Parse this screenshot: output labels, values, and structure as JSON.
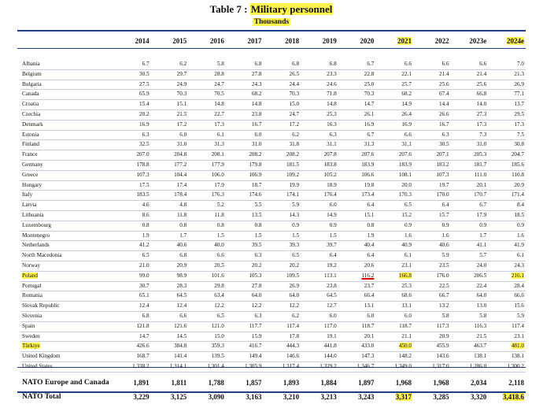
{
  "title_prefix": "Table 7 : ",
  "title_highlight": "Military personnel",
  "units": "Thousands",
  "years": [
    "2014",
    "2015",
    "2016",
    "2017",
    "2018",
    "2019",
    "2020",
    "2021",
    "2022",
    "2023e",
    "2024e"
  ],
  "highlight_color": "#fff34d",
  "rule_color": "#1f3f8a",
  "rows": [
    {
      "name": "Albania",
      "v": [
        "6.7",
        "6.2",
        "5.8",
        "6.8",
        "6.8",
        "6.8",
        "6.7",
        "6.6",
        "6.6",
        "6.6",
        "7.0"
      ]
    },
    {
      "name": "Belgium",
      "v": [
        "30.5",
        "29.7",
        "28.8",
        "27.8",
        "26.5",
        "23.3",
        "22.8",
        "22.1",
        "21.4",
        "21.4",
        "21.3"
      ]
    },
    {
      "name": "Bulgaria",
      "v": [
        "27.5",
        "24.9",
        "24.7",
        "24.3",
        "24.4",
        "24.6",
        "25.0",
        "25.7",
        "25.6",
        "25.6",
        "26.9"
      ]
    },
    {
      "name": "Canada",
      "v": [
        "65.9",
        "70.3",
        "70.5",
        "68.2",
        "70.3",
        "71.8",
        "70.3",
        "68.2",
        "67.4",
        "66.8",
        "77.1"
      ]
    },
    {
      "name": "Croatia",
      "v": [
        "15.4",
        "15.1",
        "14.8",
        "14.8",
        "15.0",
        "14.8",
        "14.7",
        "14.9",
        "14.4",
        "14.0",
        "13.7"
      ]
    },
    {
      "name": "Czechia",
      "v": [
        "20.2",
        "21.5",
        "22.7",
        "23.8",
        "24.7",
        "25.3",
        "26.1",
        "26.4",
        "26.6",
        "27.3",
        "29.5"
      ]
    },
    {
      "name": "Denmark",
      "v": [
        "16.9",
        "17.2",
        "17.3",
        "16.7",
        "17.2",
        "16.3",
        "16.9",
        "16.9",
        "16.7",
        "17.3",
        "17.3"
      ]
    },
    {
      "name": "Estonia",
      "v": [
        "6.3",
        "6.0",
        "6.1",
        "6.0",
        "6.2",
        "6.3",
        "6.7",
        "6.6",
        "6.3",
        "7.3",
        "7.5"
      ]
    },
    {
      "name": "Finland",
      "v": [
        "32.5",
        "31.0",
        "31.3",
        "31.0",
        "31.8",
        "31.1",
        "31.3",
        "31.1",
        "30.5",
        "31.0",
        "30.8"
      ]
    },
    {
      "name": "France",
      "v": [
        "207.0",
        "204.8",
        "208.1",
        "208.2",
        "208.2",
        "207.8",
        "207.6",
        "207.6",
        "207.1",
        "205.3",
        "204.7"
      ]
    },
    {
      "name": "Germany",
      "v": [
        "178.8",
        "177.2",
        "177.9",
        "179.8",
        "181.5",
        "183.8",
        "183.9",
        "183.9",
        "183.2",
        "181.7",
        "185.6"
      ]
    },
    {
      "name": "Greece",
      "v": [
        "107.3",
        "104.4",
        "106.0",
        "106.9",
        "109.2",
        "105.2",
        "106.6",
        "108.1",
        "107.3",
        "111.0",
        "110.8"
      ]
    },
    {
      "name": "Hungary",
      "v": [
        "17.5",
        "17.4",
        "17.9",
        "18.7",
        "19.9",
        "18.9",
        "19.8",
        "20.0",
        "19.7",
        "20.1",
        "20.9"
      ]
    },
    {
      "name": "Italy",
      "v": [
        "183.5",
        "178.4",
        "176.3",
        "174.6",
        "174.1",
        "176.4",
        "173.4",
        "170.3",
        "170.0",
        "170.7",
        "171.4"
      ]
    },
    {
      "name": "Latvia",
      "v": [
        "4.6",
        "4.8",
        "5.2",
        "5.5",
        "5.9",
        "6.0",
        "6.4",
        "6.5",
        "6.4",
        "6.7",
        "8.4"
      ]
    },
    {
      "name": "Lithuania",
      "v": [
        "8.6",
        "11.8",
        "11.8",
        "13.5",
        "14.3",
        "14.9",
        "15.1",
        "15.2",
        "15.7",
        "17.9",
        "18.5"
      ]
    },
    {
      "name": "Luxembourg",
      "v": [
        "0.8",
        "0.8",
        "0.8",
        "0.8",
        "0.9",
        "0.9",
        "0.8",
        "0.9",
        "0.9",
        "0.9",
        "0.9"
      ]
    },
    {
      "name": "Montenegro",
      "v": [
        "1.9",
        "1.7",
        "1.5",
        "1.5",
        "1.5",
        "1.5",
        "1.9",
        "1.6",
        "1.6",
        "1.7",
        "1.6"
      ]
    },
    {
      "name": "Netherlands",
      "v": [
        "41.2",
        "40.6",
        "40.0",
        "39.5",
        "39.3",
        "39.7",
        "40.4",
        "40.9",
        "40.6",
        "41.1",
        "41.9"
      ]
    },
    {
      "name": "North Macedonia",
      "v": [
        "6.5",
        "6.8",
        "6.6",
        "6.3",
        "6.5",
        "6.4",
        "6.4",
        "6.1",
        "5.9",
        "5.7",
        "6.1"
      ]
    },
    {
      "name": "Norway",
      "v": [
        "21.0",
        "20.9",
        "20.5",
        "20.2",
        "20.2",
        "19.2",
        "20.6",
        "23.1",
        "23.5",
        "24.0",
        "24.3"
      ]
    },
    {
      "name": "Poland",
      "hl": true,
      "v": [
        "99.0",
        "98.9",
        "101.6",
        "105.3",
        "109.5",
        "113.1",
        "116.2",
        "166.8",
        "176.0",
        "206.5",
        "216.1"
      ]
    },
    {
      "name": "Portugal",
      "v": [
        "30.7",
        "28.3",
        "29.8",
        "27.8",
        "26.9",
        "23.8",
        "23.7",
        "25.3",
        "22.5",
        "22.4",
        "28.4"
      ]
    },
    {
      "name": "Romania",
      "v": [
        "65.1",
        "64.5",
        "63.4",
        "64.0",
        "64.0",
        "64.5",
        "66.4",
        "68.6",
        "66.7",
        "64.0",
        "66.6"
      ]
    },
    {
      "name": "Slovak Republic",
      "v": [
        "12.4",
        "12.4",
        "12.2",
        "12.2",
        "12.2",
        "12.7",
        "13.1",
        "13.1",
        "13.2",
        "13.0",
        "15.6"
      ]
    },
    {
      "name": "Slovenia",
      "v": [
        "6.8",
        "6.6",
        "6.5",
        "6.3",
        "6.2",
        "6.0",
        "6.0",
        "6.0",
        "5.8",
        "5.8",
        "5.9"
      ]
    },
    {
      "name": "Spain",
      "v": [
        "121.8",
        "121.6",
        "121.0",
        "117.7",
        "117.4",
        "117.0",
        "118.7",
        "118.7",
        "117.3",
        "116.3",
        "117.4"
      ]
    },
    {
      "name": "Sweden",
      "v": [
        "14.7",
        "14.5",
        "15.0",
        "15.9",
        "17.8",
        "19.1",
        "20.1",
        "21.1",
        "20.9",
        "21.5",
        "23.1"
      ]
    },
    {
      "name": "Türkiye",
      "hl": true,
      "v": [
        "426.6",
        "384.8",
        "359.3",
        "416.7",
        "444.3",
        "441.8",
        "433.0",
        "450.0",
        "455.9",
        "463.7",
        "481.0"
      ]
    },
    {
      "name": "United Kingdom",
      "v": [
        "168.7",
        "141.4",
        "139.5",
        "149.4",
        "146.6",
        "144.0",
        "147.3",
        "148.2",
        "143.6",
        "138.1",
        "138.1"
      ]
    },
    {
      "name": "United States",
      "v": [
        "1,338.2",
        "1,314.1",
        "1,301.4",
        "1,305.9",
        "1,317.4",
        "1,329.2",
        "1,346.7",
        "1,349.0",
        "1,317.0",
        "1,286.0",
        "1,300.2"
      ]
    }
  ],
  "totals": [
    {
      "name": "NATO Europe and Canada",
      "v": [
        "1,891",
        "1,811",
        "1,788",
        "1,857",
        "1,893",
        "1,884",
        "1,897",
        "1,968",
        "1,968",
        "2,034",
        "2,118"
      ]
    },
    {
      "name": "NATO Total",
      "v": [
        "3,229",
        "3,125",
        "3,090",
        "3,163",
        "3,210",
        "3,213",
        "3,243",
        "3,317",
        "3,285",
        "3,320",
        "3,418.6"
      ]
    }
  ]
}
